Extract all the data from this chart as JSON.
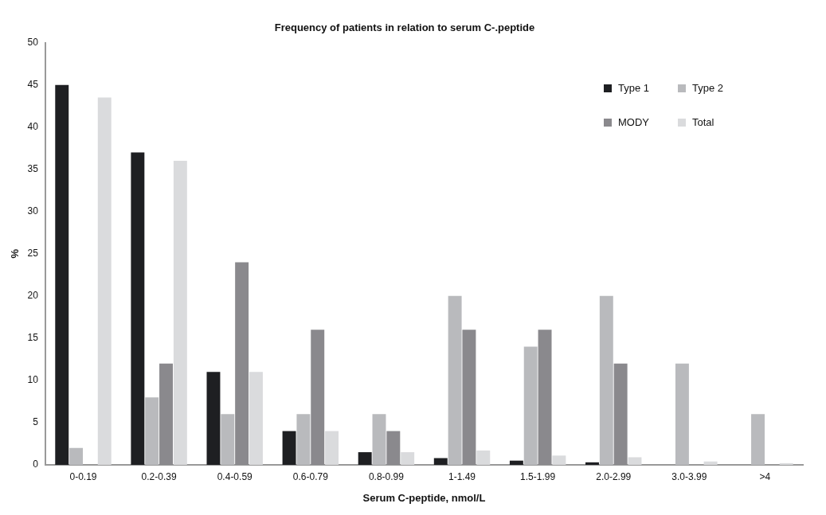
{
  "chart_data": {
    "type": "bar",
    "title": "Frequency of patients in relation to serum C-.peptide",
    "xlabel": "Serum C-peptide, nmol/L",
    "ylabel": "%",
    "categories": [
      "0-0.19",
      "0.2-0.39",
      "0.4-0.59",
      "0.6-0.79",
      "0.8-0.99",
      "1-1.49",
      "1.5-1.99",
      "2.0-2.99",
      "3.0-3.99",
      ">4"
    ],
    "series": [
      {
        "name": "Type 1",
        "color": "#1e1f22",
        "values": [
          45,
          37,
          11,
          4,
          1.5,
          0.8,
          0.5,
          0.3,
          0,
          0
        ]
      },
      {
        "name": "Type 2",
        "color": "#b9babd",
        "values": [
          2,
          8,
          6,
          6,
          6,
          20,
          14,
          20,
          12,
          6
        ]
      },
      {
        "name": "MODY",
        "color": "#8a898d",
        "values": [
          0,
          12,
          24,
          16,
          4,
          16,
          16,
          12,
          0,
          0
        ]
      },
      {
        "name": "Total",
        "color": "#dadbdd",
        "values": [
          43.5,
          36,
          11,
          4,
          1.5,
          1.7,
          1.1,
          0.9,
          0.4,
          0.2
        ]
      }
    ],
    "ylim": [
      0,
      50
    ],
    "yticks": [
      0,
      5,
      10,
      15,
      20,
      25,
      30,
      35,
      40,
      45,
      50
    ],
    "grid": false,
    "legend": "top right"
  }
}
